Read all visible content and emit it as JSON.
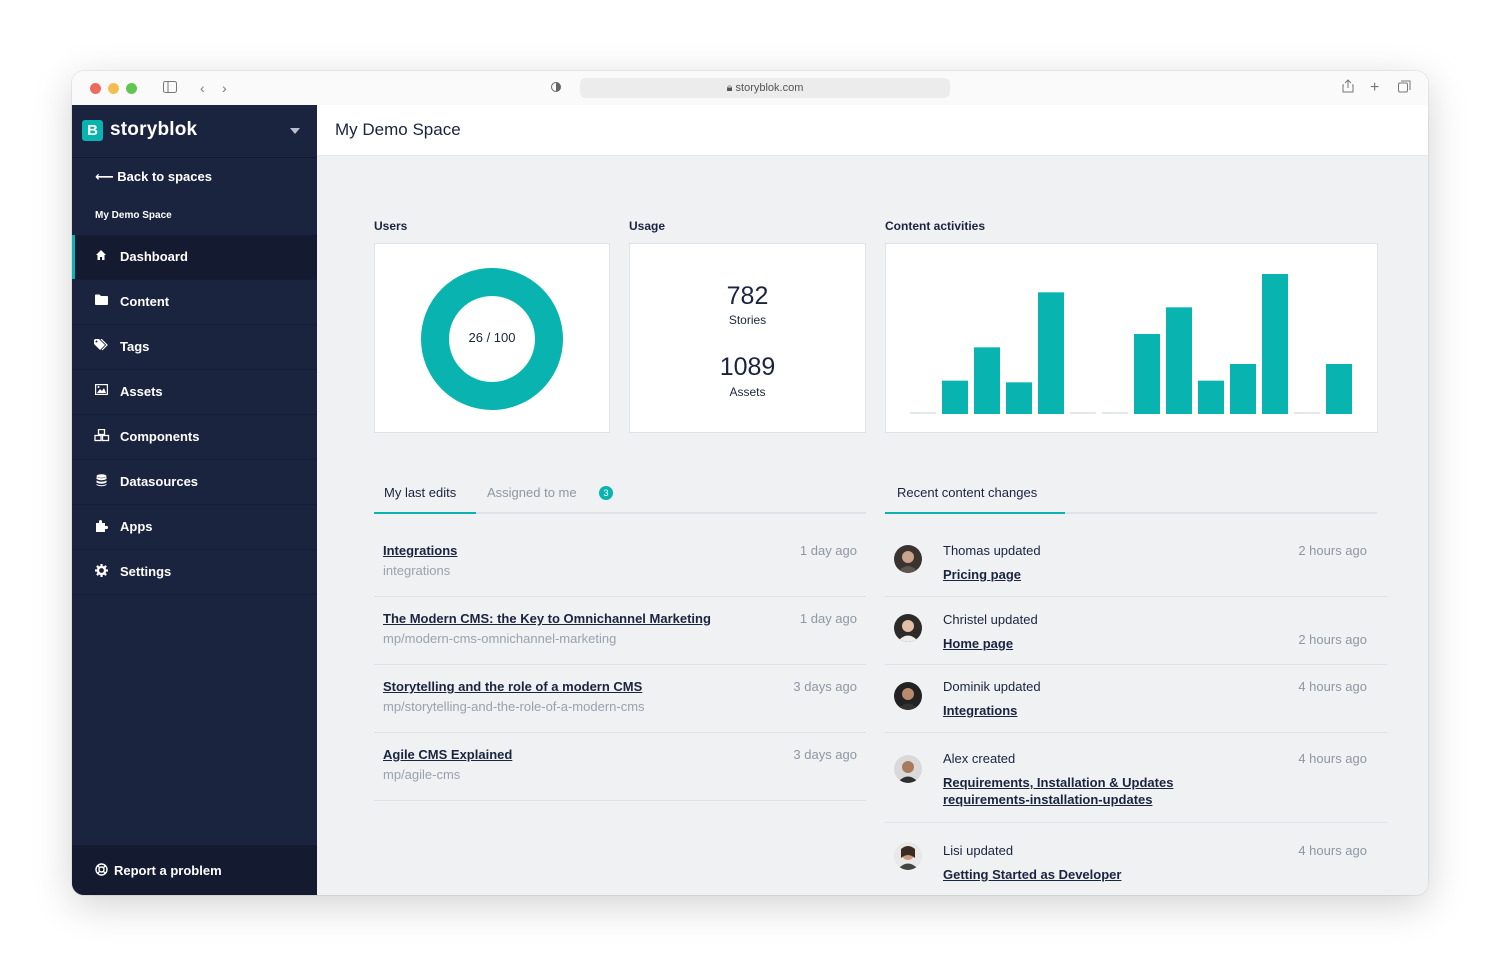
{
  "browser": {
    "url": "storyblok.com"
  },
  "sidebar": {
    "brand": "storyblok",
    "brand_initial": "B",
    "back_label": "Back to spaces",
    "space_name": "My Demo Space",
    "items": [
      {
        "label": "Dashboard",
        "icon": "home-icon",
        "active": true
      },
      {
        "label": "Content",
        "icon": "folder-icon"
      },
      {
        "label": "Tags",
        "icon": "tag-icon"
      },
      {
        "label": "Assets",
        "icon": "image-icon"
      },
      {
        "label": "Components",
        "icon": "cubes-icon"
      },
      {
        "label": "Datasources",
        "icon": "database-icon"
      },
      {
        "label": "Apps",
        "icon": "puzzle-icon"
      },
      {
        "label": "Settings",
        "icon": "gear-icon"
      }
    ],
    "report_label": "Report a problem"
  },
  "header": {
    "title": "My Demo Space"
  },
  "widgets": {
    "users": {
      "label": "Users",
      "count": "26",
      "total": "/ 100",
      "fraction": 0.26
    },
    "usage": {
      "label": "Usage",
      "stories_value": "782",
      "stories_label": "Stories",
      "assets_value": "1089",
      "assets_label": "Assets"
    },
    "activities": {
      "label": "Content activities"
    }
  },
  "chart_data": {
    "type": "bar",
    "title": "Content activities",
    "values": [
      0,
      2,
      4,
      1.9,
      7.3,
      0,
      0,
      4.8,
      6.4,
      2,
      3,
      8.4,
      0,
      3
    ],
    "ylim": [
      0,
      9
    ],
    "color": "#09b3af",
    "grid": false
  },
  "edits": {
    "tab_active": "My last edits",
    "tab_other": "Assigned to me",
    "assigned_count": "3",
    "rows": [
      {
        "title": "Integrations",
        "slug": "integrations",
        "time": "1 day ago"
      },
      {
        "title": "The Modern CMS: the Key to Omnichannel Marketing",
        "slug": "mp/modern-cms-omnichannel-marketing",
        "time": "1 day ago"
      },
      {
        "title": "Storytelling and the role of a modern CMS",
        "slug": "mp/storytelling-and-the-role-of-a-modern-cms",
        "time": "3 days ago"
      },
      {
        "title": "Agile CMS Explained",
        "slug": "mp/agile-cms",
        "time": "3 days ago"
      }
    ]
  },
  "changes": {
    "tab": "Recent content changes",
    "rows": [
      {
        "text": "Thomas updated",
        "link": "Pricing page",
        "link2": "",
        "time": "2 hours ago"
      },
      {
        "text": "Christel updated",
        "link": "Home page",
        "link2": "",
        "time": "2 hours ago"
      },
      {
        "text": "Dominik updated",
        "link": "Integrations",
        "link2": "",
        "time": "4 hours ago"
      },
      {
        "text": "Alex created",
        "link": "Requirements, Installation & Updates",
        "link2": "requirements-installation-updates",
        "time": "4 hours ago"
      },
      {
        "text": "Lisi updated",
        "link": "Getting Started as Developer",
        "link2": "",
        "time": "4 hours ago"
      }
    ]
  },
  "colors": {
    "accent": "#09b3af",
    "sidebar": "#1b243f",
    "background": "#eff1f3"
  }
}
